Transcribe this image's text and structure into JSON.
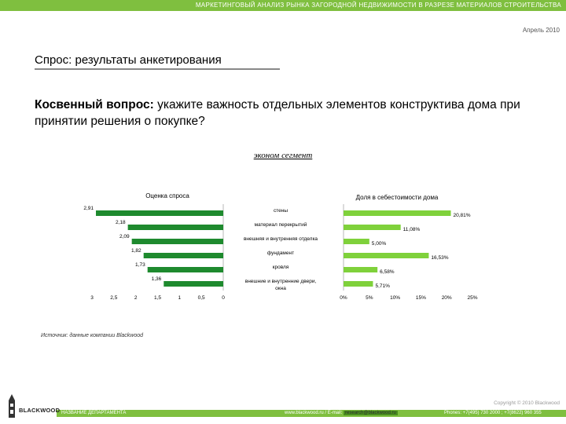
{
  "header": {
    "title": "МАРКЕТИНГОВЫЙ АНАЛИЗ РЫНКА ЗАГОРОДНОЙ НЕДВИЖИМОСТИ В РАЗРЕЗЕ МАТЕРИАЛОВ СТРОИТЕЛЬСТВА",
    "date": "Апрель 2010",
    "accent": "#7fbf3f"
  },
  "section_title": "Спрос: результаты анкетирования",
  "question": {
    "lead": "Косвенный вопрос:",
    "text": " укажите важность отдельных элементов конструктива дома при принятии решения о покупке?"
  },
  "segment": "эконом сегмент",
  "chart_data": [
    {
      "type": "bar",
      "orientation": "horizontal",
      "reversed_x": true,
      "title": "Оценка спроса",
      "categories": [
        "стены",
        "материал перекрытий",
        "внешняя и внутренняя отделка",
        "фундамент",
        "кровля",
        "внешние и внутренние двери, окна"
      ],
      "values": [
        2.91,
        2.18,
        2.09,
        1.82,
        1.73,
        1.36
      ],
      "value_labels": [
        "2,91",
        "2,18",
        "2,09",
        "1,82",
        "1,73",
        "1,36"
      ],
      "xlim": [
        0,
        3
      ],
      "ticks": [
        "3",
        "2,5",
        "2",
        "1,5",
        "1",
        "0,5",
        "0"
      ],
      "color": "#1e8a2e"
    },
    {
      "type": "bar",
      "orientation": "horizontal",
      "title": "Доля в себестоимости дома",
      "categories": [
        "стены",
        "материал перекрытий",
        "внешняя и внутренняя отделка",
        "фундамент",
        "кровля",
        "внешние и внутренние двери, окна"
      ],
      "values": [
        20.81,
        11.08,
        5.0,
        16.53,
        6.58,
        5.71
      ],
      "value_labels": [
        "20,81%",
        "11,08%",
        "5,00%",
        "16,53%",
        "6,58%",
        "5,71%"
      ],
      "xlim": [
        0,
        25
      ],
      "ticks": [
        "0%",
        "5%",
        "10%",
        "15%",
        "20%",
        "25%"
      ],
      "color": "#7fd13b"
    }
  ],
  "source": "Источник: данные компании Blackwood",
  "footer": {
    "copyright": "Copyright © 2010 Blackwood",
    "department": "НАЗВАНИЕ ДЕПАРТАМЕНТА",
    "site": "www.blackwood.ru / E-mail: ",
    "email": "research@blackwood.ru",
    "phones": "Phones: +7(495) 730 2000 ; +7(8622) 960 355",
    "logo_text": "BLACKWOOD"
  }
}
